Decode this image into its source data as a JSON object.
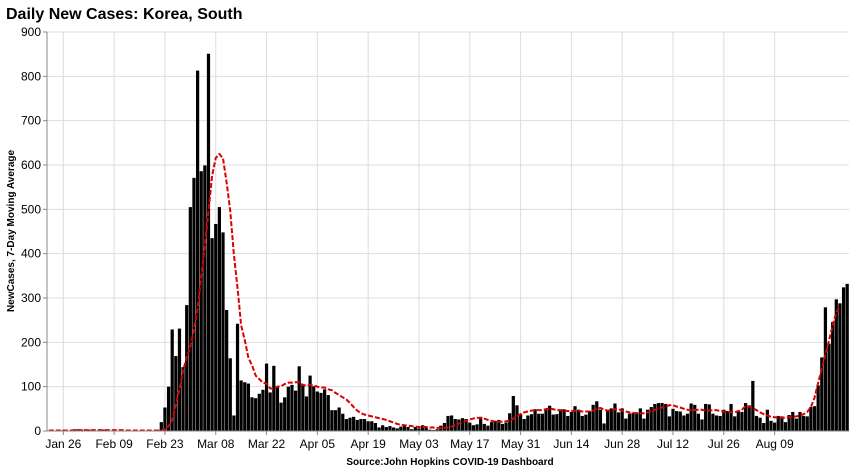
{
  "chart_data": {
    "type": "bar",
    "title": "Daily New Cases: Korea, South",
    "xlabel": "Source:John Hopkins COVID-19 Dashboard",
    "ylabel": "NewCases, 7-Day Moving Average",
    "ylim": [
      0,
      900
    ],
    "yticks": [
      0,
      100,
      200,
      300,
      400,
      500,
      600,
      700,
      800,
      900
    ],
    "x_start": "2020-01-22",
    "xtick_labels": [
      "Jan 26",
      "Feb 09",
      "Feb 23",
      "Mar 08",
      "Mar 22",
      "Apr 05",
      "Apr 19",
      "May 03",
      "May 17",
      "May 31",
      "Jun 14",
      "Jun 28",
      "Jul 12",
      "Jul 26",
      "Aug 09"
    ],
    "xtick_dates": [
      "2020-01-26",
      "2020-02-09",
      "2020-02-23",
      "2020-03-08",
      "2020-03-22",
      "2020-04-05",
      "2020-04-19",
      "2020-05-03",
      "2020-05-17",
      "2020-05-31",
      "2020-06-14",
      "2020-06-28",
      "2020-07-12",
      "2020-07-26",
      "2020-08-09"
    ],
    "grid": true,
    "series": [
      {
        "kind": "bar",
        "color": "#000000",
        "values": [
          1,
          0,
          1,
          0,
          2,
          1,
          0,
          4,
          4,
          3,
          0,
          3,
          0,
          1,
          0,
          3,
          1,
          0,
          0,
          0,
          0,
          0,
          0,
          1,
          0,
          0,
          0,
          0,
          0,
          1,
          3,
          20,
          53,
          100,
          229,
          169,
          231,
          144,
          284,
          505,
          571,
          813,
          586,
          599,
          851,
          435,
          467,
          505,
          448,
          273,
          164,
          35,
          242,
          114,
          110,
          107,
          76,
          74,
          84,
          93,
          152,
          87,
          147,
          98,
          64,
          76,
          100,
          104,
          91,
          146,
          105,
          78,
          125,
          101,
          89,
          86,
          94,
          81,
          47,
          47,
          53,
          39,
          27,
          30,
          32,
          25,
          27,
          27,
          22,
          22,
          18,
          8,
          13,
          9,
          11,
          8,
          6,
          10,
          14,
          9,
          4,
          9,
          6,
          13,
          8,
          3,
          2,
          4,
          12,
          18,
          34,
          35,
          27,
          26,
          29,
          27,
          19,
          13,
          15,
          32,
          16,
          12,
          20,
          23,
          25,
          16,
          19,
          40,
          79,
          58,
          39,
          27,
          35,
          38,
          49,
          39,
          39,
          51,
          57,
          37,
          38,
          49,
          49,
          34,
          43,
          56,
          48,
          34,
          37,
          45,
          59,
          67,
          48,
          17,
          46,
          51,
          62,
          42,
          51,
          28,
          39,
          41,
          42,
          51,
          28,
          48,
          54,
          61,
          63,
          63,
          61,
          33,
          50,
          45,
          44,
          35,
          39,
          62,
          59,
          39,
          26,
          61,
          60,
          39,
          35,
          34,
          48,
          45,
          61,
          33,
          44,
          43,
          63,
          58,
          113,
          34,
          30,
          18,
          48,
          23,
          19,
          34,
          33,
          20,
          36,
          43,
          28,
          43,
          34,
          33,
          54,
          56,
          103,
          166,
          279,
          197,
          246,
          297,
          288,
          324,
          332
        ]
      },
      {
        "kind": "line",
        "name": "7-Day Moving Average",
        "color": "#dd0000",
        "values": [
          1,
          1,
          1,
          1,
          1,
          1,
          1,
          1,
          2,
          2,
          2,
          2,
          2,
          2,
          2,
          2,
          2,
          2,
          2,
          2,
          2,
          1,
          1,
          1,
          1,
          1,
          1,
          1,
          1,
          1,
          1,
          1,
          4,
          11,
          25,
          58,
          94,
          136,
          166,
          191,
          228,
          276,
          348,
          416,
          496,
          576,
          616,
          625,
          615,
          560,
          496,
          398,
          323,
          238,
          205,
          165,
          148,
          125,
          117,
          109,
          107,
          96,
          96,
          100,
          101,
          106,
          109,
          109,
          110,
          110,
          104,
          102,
          104,
          103,
          100,
          98,
          98,
          94,
          92,
          86,
          81,
          76,
          71,
          63,
          54,
          46,
          40,
          37,
          35,
          33,
          31,
          29,
          27,
          25,
          22,
          19,
          16,
          14,
          13,
          12,
          11,
          10,
          9,
          9,
          9,
          8,
          8,
          7,
          7,
          7,
          8,
          10,
          13,
          17,
          20,
          23,
          26,
          28,
          30,
          29,
          28,
          25,
          23,
          21,
          21,
          21,
          22,
          23,
          28,
          33,
          38,
          42,
          44,
          46,
          47,
          47,
          47,
          49,
          51,
          49,
          47,
          47,
          46,
          45,
          45,
          46,
          45,
          44,
          44,
          44,
          46,
          50,
          52,
          48,
          46,
          47,
          49,
          49,
          46,
          44,
          42,
          41,
          40,
          40,
          40,
          42,
          45,
          48,
          50,
          53,
          56,
          58,
          58,
          55,
          53,
          50,
          48,
          47,
          47,
          48,
          48,
          46,
          46,
          47,
          47,
          45,
          44,
          43,
          43,
          42,
          45,
          48,
          56,
          55,
          52,
          47,
          42,
          38,
          35,
          32,
          31,
          30,
          30,
          30,
          31,
          32,
          33,
          35,
          38,
          43,
          54,
          75,
          109,
          140,
          173,
          204,
          238,
          268,
          281
        ]
      }
    ]
  }
}
